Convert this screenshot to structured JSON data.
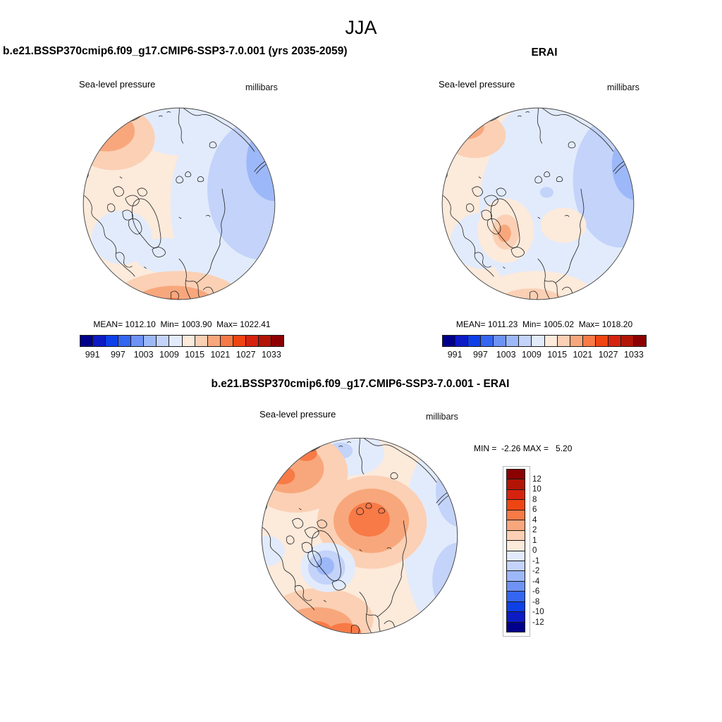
{
  "title": "JJA",
  "panels": {
    "model": {
      "header": "b.e21.BSSP370cmip6.f09_g17.CMIP6-SSP3-7.0.001 (yrs 2035-2059)",
      "variable": "Sea-level pressure",
      "units": "millibars",
      "stats": "MEAN= 1012.10  Min= 1003.90  Max= 1022.41"
    },
    "erai": {
      "header": "ERAI",
      "variable": "Sea-level pressure",
      "units": "millibars",
      "stats": "MEAN= 1011.23  Min= 1005.02  Max= 1018.20"
    },
    "difference": {
      "header": "b.e21.BSSP370cmip6.f09_g17.CMIP6-SSP3-7.0.001 - ERAI",
      "variable": "Sea-level pressure",
      "units": "millibars",
      "stats": "MIN =  -2.26 MAX =   5.20"
    }
  },
  "colorbars": {
    "pressure": {
      "orientation": "horizontal",
      "colors": [
        "#00008B",
        "#0D1BC4",
        "#0E40E8",
        "#3566F2",
        "#6E93F5",
        "#9DB8F8",
        "#C3D3FA",
        "#E2EBFC",
        "#FCEADB",
        "#FBD0B4",
        "#F8A77C",
        "#F87A47",
        "#EF4513",
        "#D62310",
        "#B21505",
        "#8B0000"
      ],
      "tick_labels": [
        "991",
        "997",
        "1003",
        "1009",
        "1015",
        "1021",
        "1027",
        "1033"
      ],
      "tick_boundary_indices": [
        1,
        3,
        5,
        7,
        9,
        11,
        13,
        15
      ]
    },
    "difference": {
      "orientation": "vertical",
      "colors": [
        "#8B0000",
        "#B21505",
        "#D62310",
        "#EF4513",
        "#F87A47",
        "#F8A77C",
        "#FBD0B4",
        "#FCEADB",
        "#E2EBFC",
        "#C3D3FA",
        "#9DB8F8",
        "#6E93F5",
        "#3566F2",
        "#0E40E8",
        "#0D1BC4",
        "#00008B"
      ],
      "tick_labels": [
        "12",
        "10",
        "8",
        "6",
        "4",
        "2",
        "1",
        "0",
        "-1",
        "-2",
        "-4",
        "-6",
        "-8",
        "-10",
        "-12"
      ]
    }
  },
  "chart_data": [
    {
      "type": "heatmap",
      "subtype": "filled-contour polar stereographic map (Northern Hemisphere)",
      "season": "JJA",
      "title": "b.e21.BSSP370cmip6.f09_g17.CMIP6-SSP3-7.0.001 (yrs 2035-2059)",
      "variable": "Sea-level pressure",
      "units": "millibars",
      "mean": 1012.1,
      "min": 1003.9,
      "max": 1022.41,
      "contour_levels": [
        991,
        994,
        997,
        1000,
        1003,
        1006,
        1009,
        1012,
        1015,
        1018,
        1021,
        1024,
        1027,
        1030,
        1033
      ],
      "labeled_levels": [
        991,
        997,
        1003,
        1009,
        1015,
        1021,
        1027,
        1033
      ],
      "legend_position": "bottom",
      "notes": "pale peach (~1013-1016 mb) over central Arctic; low pressure (blues ~1006-1010) over Siberian/eastern sector and Hudson Bay; highs (oranges ~1018-1022) at top-left edge and over southern Scandinavia/UK"
    },
    {
      "type": "heatmap",
      "subtype": "filled-contour polar stereographic map (Northern Hemisphere)",
      "season": "JJA",
      "title": "ERAI",
      "variable": "Sea-level pressure",
      "units": "millibars",
      "mean": 1011.23,
      "min": 1005.02,
      "max": 1018.2,
      "contour_levels": [
        991,
        994,
        997,
        1000,
        1003,
        1006,
        1009,
        1012,
        1015,
        1018,
        1021,
        1024,
        1027,
        1030,
        1033
      ],
      "labeled_levels": [
        991,
        997,
        1003,
        1009,
        1015,
        1021,
        1027,
        1033
      ],
      "legend_position": "bottom",
      "notes": "mostly pale blue (~1008-1012 mb) across Arctic basin; peach over North America sector and Greenland with small orange spot; deeper blue on eastern/right limb; orange near bottom edge over UK"
    },
    {
      "type": "heatmap",
      "subtype": "filled-contour polar stereographic difference map (model minus reanalysis)",
      "season": "JJA",
      "title": "b.e21.BSSP370cmip6.f09_g17.CMIP6-SSP3-7.0.001 - ERAI",
      "variable": "Sea-level pressure",
      "units": "millibars",
      "min": -2.26,
      "max": 5.2,
      "contour_levels": [
        -12,
        -10,
        -8,
        -6,
        -4,
        -2,
        -1,
        0,
        1,
        2,
        4,
        6,
        8,
        10,
        12
      ],
      "legend_position": "right",
      "notes": "positive bias (orange, +2 to +5 mb) centered near the pole/central Arctic, upper-left limb and lower-left/UK sector; negative bias (blue, -1 to -2 mb) over Greenland, top-center and along the right limb"
    }
  ]
}
